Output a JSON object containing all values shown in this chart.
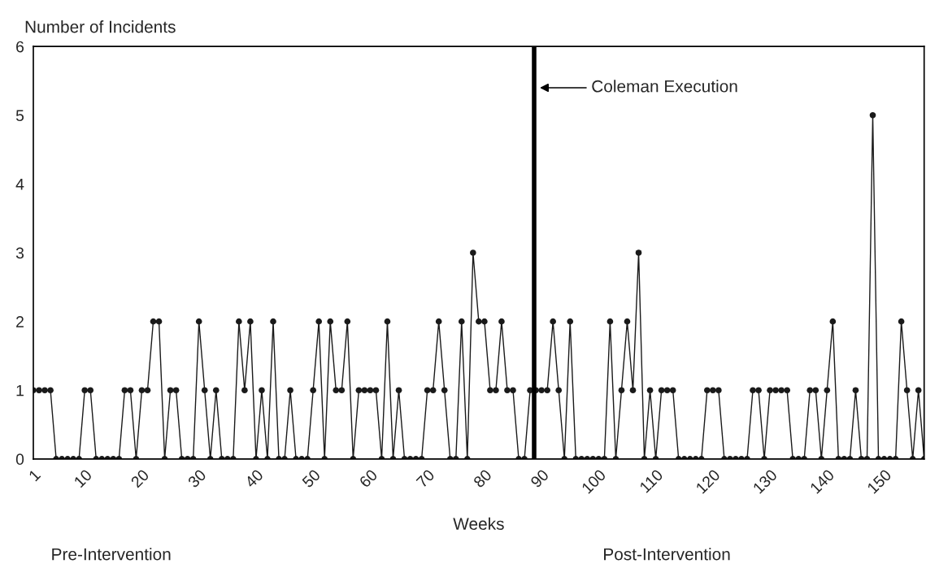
{
  "chart_data": {
    "type": "line",
    "ylabel": "Number of Incidents",
    "xlabel": "Weeks",
    "x": [
      1,
      2,
      3,
      4,
      5,
      6,
      7,
      8,
      9,
      10,
      11,
      12,
      13,
      14,
      15,
      16,
      17,
      18,
      19,
      20,
      21,
      22,
      23,
      24,
      25,
      26,
      27,
      28,
      29,
      30,
      31,
      32,
      33,
      34,
      35,
      36,
      37,
      38,
      39,
      40,
      41,
      42,
      43,
      44,
      45,
      46,
      47,
      48,
      49,
      50,
      51,
      52,
      53,
      54,
      55,
      56,
      57,
      58,
      59,
      60,
      61,
      62,
      63,
      64,
      65,
      66,
      67,
      68,
      69,
      70,
      71,
      72,
      73,
      74,
      75,
      76,
      77,
      78,
      79,
      80,
      81,
      82,
      83,
      84,
      85,
      86,
      87,
      88,
      89,
      90,
      91,
      92,
      93,
      94,
      95,
      96,
      97,
      98,
      99,
      100,
      101,
      102,
      103,
      104,
      105,
      106,
      107,
      108,
      109,
      110,
      111,
      112,
      113,
      114,
      115,
      116,
      117,
      118,
      119,
      120,
      121,
      122,
      123,
      124,
      125,
      126,
      127,
      128,
      129,
      130,
      131,
      132,
      133,
      134,
      135,
      136,
      137,
      138,
      139,
      140,
      141,
      142,
      143,
      144,
      145,
      146,
      147,
      148,
      149,
      150,
      151,
      152,
      153,
      154,
      155,
      156,
      157
    ],
    "series": [
      {
        "color": "#1a1a1a",
        "values": [
          1,
          1,
          1,
          1,
          0,
          0,
          0,
          0,
          0,
          1,
          1,
          0,
          0,
          0,
          0,
          0,
          1,
          1,
          0,
          1,
          1,
          2,
          2,
          0,
          1,
          1,
          0,
          0,
          0,
          2,
          1,
          0,
          1,
          0,
          0,
          0,
          2,
          1,
          2,
          0,
          1,
          0,
          2,
          0,
          0,
          1,
          0,
          0,
          0,
          1,
          2,
          0,
          2,
          1,
          1,
          2,
          0,
          1,
          1,
          1,
          1,
          0,
          2,
          0,
          1,
          0,
          0,
          0,
          0,
          1,
          1,
          2,
          1,
          0,
          0,
          2,
          0,
          3,
          2,
          2,
          1,
          1,
          2,
          1,
          1,
          0,
          0,
          1,
          1,
          1,
          1,
          2,
          1,
          0,
          2,
          0,
          0,
          0,
          0,
          0,
          0,
          2,
          0,
          1,
          2,
          1,
          3,
          0,
          1,
          0,
          1,
          1,
          1,
          0,
          0,
          0,
          0,
          0,
          1,
          1,
          1,
          0,
          0,
          0,
          0,
          0,
          1,
          1,
          0,
          1,
          1,
          1,
          1,
          0,
          0,
          0,
          1,
          1,
          0,
          1,
          2,
          0,
          0,
          0,
          1,
          0,
          0,
          5,
          0,
          0,
          0,
          0,
          2,
          1,
          0,
          1,
          0
        ]
      }
    ],
    "xlim": [
      1,
      157
    ],
    "xticks": [
      1,
      10,
      20,
      30,
      40,
      50,
      60,
      70,
      80,
      90,
      100,
      110,
      120,
      130,
      140,
      150
    ],
    "ylim": [
      0,
      6
    ],
    "yticks": [
      0,
      1,
      2,
      3,
      4,
      5,
      6
    ],
    "ref_lines": [
      {
        "axis": "x",
        "value": 88.7,
        "label": "Coleman Execution",
        "color": "#000000"
      }
    ],
    "annotations": [
      "Pre-Intervention",
      "Post-Intervention"
    ],
    "marker": "circle",
    "line_style": "solid",
    "grid": false,
    "legend": false
  }
}
